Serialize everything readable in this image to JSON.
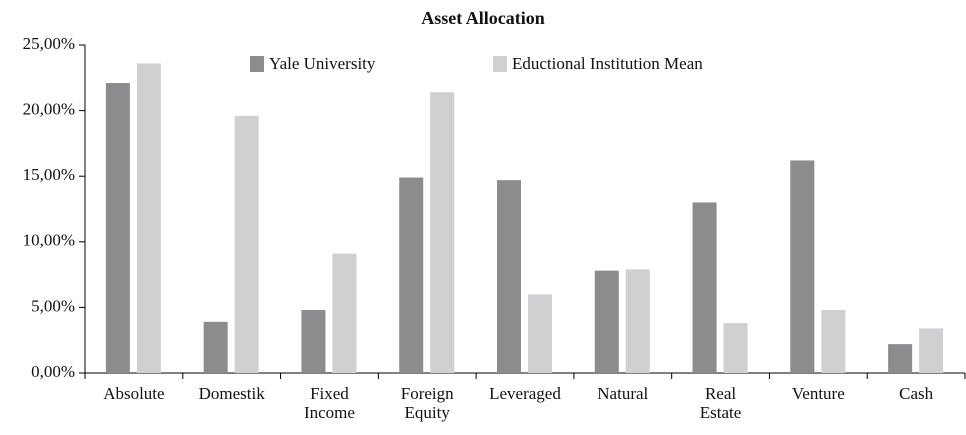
{
  "chart_data": {
    "type": "bar",
    "title": "Asset Allocation",
    "categories": [
      "Absolute",
      "Domestik",
      "Fixed Income",
      "Foreign Equity",
      "Leveraged",
      "Natural",
      "Real Estate",
      "Venture",
      "Cash"
    ],
    "series": [
      {
        "name": "Yale University",
        "color": "#8c8c8f",
        "values": [
          22.1,
          3.9,
          4.8,
          14.9,
          14.7,
          7.8,
          13.0,
          16.2,
          2.2
        ]
      },
      {
        "name": "Eductional Institution Mean",
        "color": "#d0d0d2",
        "values": [
          23.6,
          19.6,
          9.1,
          21.4,
          6.0,
          7.9,
          3.8,
          4.8,
          3.4
        ]
      }
    ],
    "ylim": [
      0,
      25
    ],
    "yticks": [
      {
        "value": 0,
        "label": "0,00%"
      },
      {
        "value": 5,
        "label": "5,00%"
      },
      {
        "value": 10,
        "label": "10,00%"
      },
      {
        "value": 15,
        "label": "15,00%"
      },
      {
        "value": 20,
        "label": "20,00%"
      },
      {
        "value": 25,
        "label": "25,00%"
      }
    ],
    "legend": "top",
    "grid": false
  }
}
